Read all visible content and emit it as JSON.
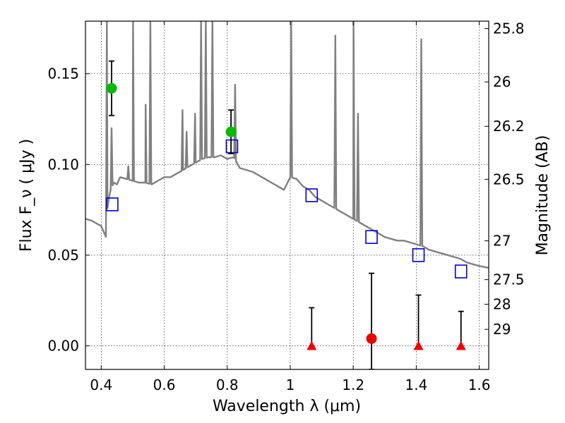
{
  "chart_data": {
    "type": "line",
    "title": "",
    "xlabel": "Wavelength  λ (μm)",
    "ylabel": "Flux  F_ν  ( μJy )",
    "y2label": "Magnitude (AB)",
    "xlim": [
      0.35,
      1.63
    ],
    "ylim": [
      -0.013,
      0.179
    ],
    "grid": true,
    "legend": "none",
    "x_ticks": [
      0.4,
      0.6,
      0.8,
      1.0,
      1.2,
      1.4,
      1.6
    ],
    "x_tick_labels": [
      "0.4",
      "0.6",
      "0.8",
      "1",
      "1.2",
      "1.4",
      "1.6"
    ],
    "y_ticks": [
      0.0,
      0.05,
      0.1,
      0.15
    ],
    "y_tick_labels": [
      "0.00",
      "0.05",
      "0.10",
      "0.15"
    ],
    "y2_ticks": [
      {
        "label": "25.8",
        "flux": 0.1749
      },
      {
        "label": "26",
        "flux": 0.1455
      },
      {
        "label": "26.2",
        "flux": 0.121
      },
      {
        "label": "26.5",
        "flux": 0.0918
      },
      {
        "label": "27",
        "flux": 0.0579
      },
      {
        "label": "27.5",
        "flux": 0.0365
      },
      {
        "label": "28",
        "flux": 0.0229
      },
      {
        "label": "29",
        "flux": 0.0091
      }
    ],
    "colors": {
      "spectrum": "#808080",
      "model_points": "#0000cc",
      "detections": "#00bb00",
      "nondetections": "#ee0000",
      "errorbars": "#000000"
    },
    "series": [
      {
        "kind": "spectrum",
        "x": [
          0.35,
          0.37,
          0.39,
          0.4,
          0.41,
          0.415,
          0.42,
          0.425,
          0.43,
          0.44,
          0.45,
          0.46,
          0.48,
          0.5,
          0.52,
          0.54,
          0.56,
          0.58,
          0.6,
          0.62,
          0.64,
          0.66,
          0.68,
          0.7,
          0.72,
          0.74,
          0.76,
          0.78,
          0.8,
          0.82,
          0.84,
          0.86,
          0.88,
          0.9,
          0.92,
          0.94,
          0.96,
          0.98,
          1.0,
          1.02,
          1.04,
          1.06,
          1.08,
          1.1,
          1.12,
          1.14,
          1.16,
          1.18,
          1.2,
          1.22,
          1.24,
          1.26,
          1.28,
          1.3,
          1.32,
          1.34,
          1.36,
          1.38,
          1.4,
          1.42,
          1.44,
          1.46,
          1.48,
          1.5,
          1.52,
          1.54,
          1.56,
          1.58,
          1.6,
          1.63
        ],
        "y": [
          0.07,
          0.069,
          0.067,
          0.066,
          0.062,
          0.06,
          0.076,
          0.082,
          0.086,
          0.09,
          0.089,
          0.093,
          0.092,
          0.091,
          0.09,
          0.09,
          0.089,
          0.091,
          0.093,
          0.093,
          0.095,
          0.097,
          0.099,
          0.101,
          0.103,
          0.104,
          0.104,
          0.105,
          0.103,
          0.104,
          0.098,
          0.097,
          0.096,
          0.094,
          0.092,
          0.09,
          0.088,
          0.086,
          0.093,
          0.092,
          0.088,
          0.086,
          0.082,
          0.08,
          0.078,
          0.076,
          0.074,
          0.072,
          0.07,
          0.068,
          0.066,
          0.064,
          0.062,
          0.06,
          0.059,
          0.058,
          0.058,
          0.057,
          0.056,
          0.055,
          0.053,
          0.052,
          0.051,
          0.05,
          0.049,
          0.048,
          0.046,
          0.045,
          0.044,
          0.043
        ]
      },
      {
        "kind": "emission_lines",
        "lines": [
          {
            "x": 0.418,
            "peak": 0.179
          },
          {
            "x": 0.433,
            "peak": 0.12
          },
          {
            "x": 0.486,
            "peak": 0.099
          },
          {
            "x": 0.501,
            "peak": 0.179
          },
          {
            "x": 0.541,
            "peak": 0.133
          },
          {
            "x": 0.556,
            "peak": 0.179
          },
          {
            "x": 0.658,
            "peak": 0.13
          },
          {
            "x": 0.671,
            "peak": 0.118
          },
          {
            "x": 0.698,
            "peak": 0.128
          },
          {
            "x": 0.717,
            "peak": 0.179
          },
          {
            "x": 0.732,
            "peak": 0.179
          },
          {
            "x": 0.753,
            "peak": 0.179
          },
          {
            "x": 0.825,
            "peak": 0.144
          },
          {
            "x": 1.003,
            "peak": 0.179
          },
          {
            "x": 1.143,
            "peak": 0.171
          },
          {
            "x": 1.201,
            "peak": 0.179
          },
          {
            "x": 1.215,
            "peak": 0.128
          },
          {
            "x": 1.416,
            "peak": 0.169
          }
        ]
      },
      {
        "kind": "model_points",
        "x": [
          0.435,
          0.815,
          1.068,
          1.258,
          1.407,
          1.542
        ],
        "y": [
          0.078,
          0.11,
          0.083,
          0.06,
          0.05,
          0.041
        ]
      },
      {
        "kind": "detections",
        "x": [
          0.433,
          0.812
        ],
        "y": [
          0.142,
          0.118
        ],
        "yerr": [
          0.015,
          0.012
        ]
      },
      {
        "kind": "nondetections",
        "x": [
          1.258
        ],
        "y": [
          0.004
        ],
        "yerr_low": [
          -0.013
        ],
        "yerr_high": [
          0.04
        ]
      },
      {
        "kind": "upper_limits",
        "x": [
          1.068,
          1.407,
          1.542
        ],
        "y": [
          0.0,
          0.0,
          0.0
        ],
        "yerr_high": [
          0.021,
          0.028,
          0.019
        ]
      }
    ]
  }
}
